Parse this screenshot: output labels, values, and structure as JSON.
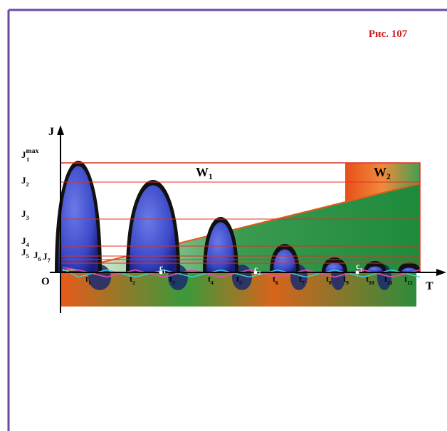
{
  "figure_label": "Рис. 107",
  "axes": {
    "y": "J",
    "x": "T",
    "origin": "O"
  },
  "levels": [
    {
      "base": "J",
      "sub": "1",
      "sup": "max"
    },
    {
      "base": "J",
      "sub": "2"
    },
    {
      "base": "J",
      "sub": "3"
    },
    {
      "base": "J",
      "sub": "4"
    },
    {
      "base": "J",
      "sub": "5"
    },
    {
      "base": "J",
      "sub": "6"
    },
    {
      "base": "J",
      "sub": "7"
    }
  ],
  "regions": [
    {
      "base": "W",
      "sub": "1"
    },
    {
      "base": "W",
      "sub": "2"
    }
  ],
  "times": [
    {
      "base": "t",
      "sub": "1"
    },
    {
      "base": "t",
      "sub": "2"
    },
    {
      "base": "t",
      "sub": "3"
    },
    {
      "base": "t",
      "sub": "4"
    },
    {
      "base": "t",
      "sub": "5"
    },
    {
      "base": "t",
      "sub": "6"
    },
    {
      "base": "t",
      "sub": "7"
    },
    {
      "base": "t",
      "sub": "8"
    },
    {
      "base": "t",
      "sub": "9"
    },
    {
      "base": "t",
      "sub": "10"
    },
    {
      "base": "t",
      "sub": "11"
    },
    {
      "base": "t",
      "sub": "12"
    }
  ],
  "points": [
    {
      "base": "c",
      "sub": "1"
    },
    {
      "base": "c",
      "sub": "2"
    },
    {
      "base": "c",
      "sub": "3"
    }
  ]
}
